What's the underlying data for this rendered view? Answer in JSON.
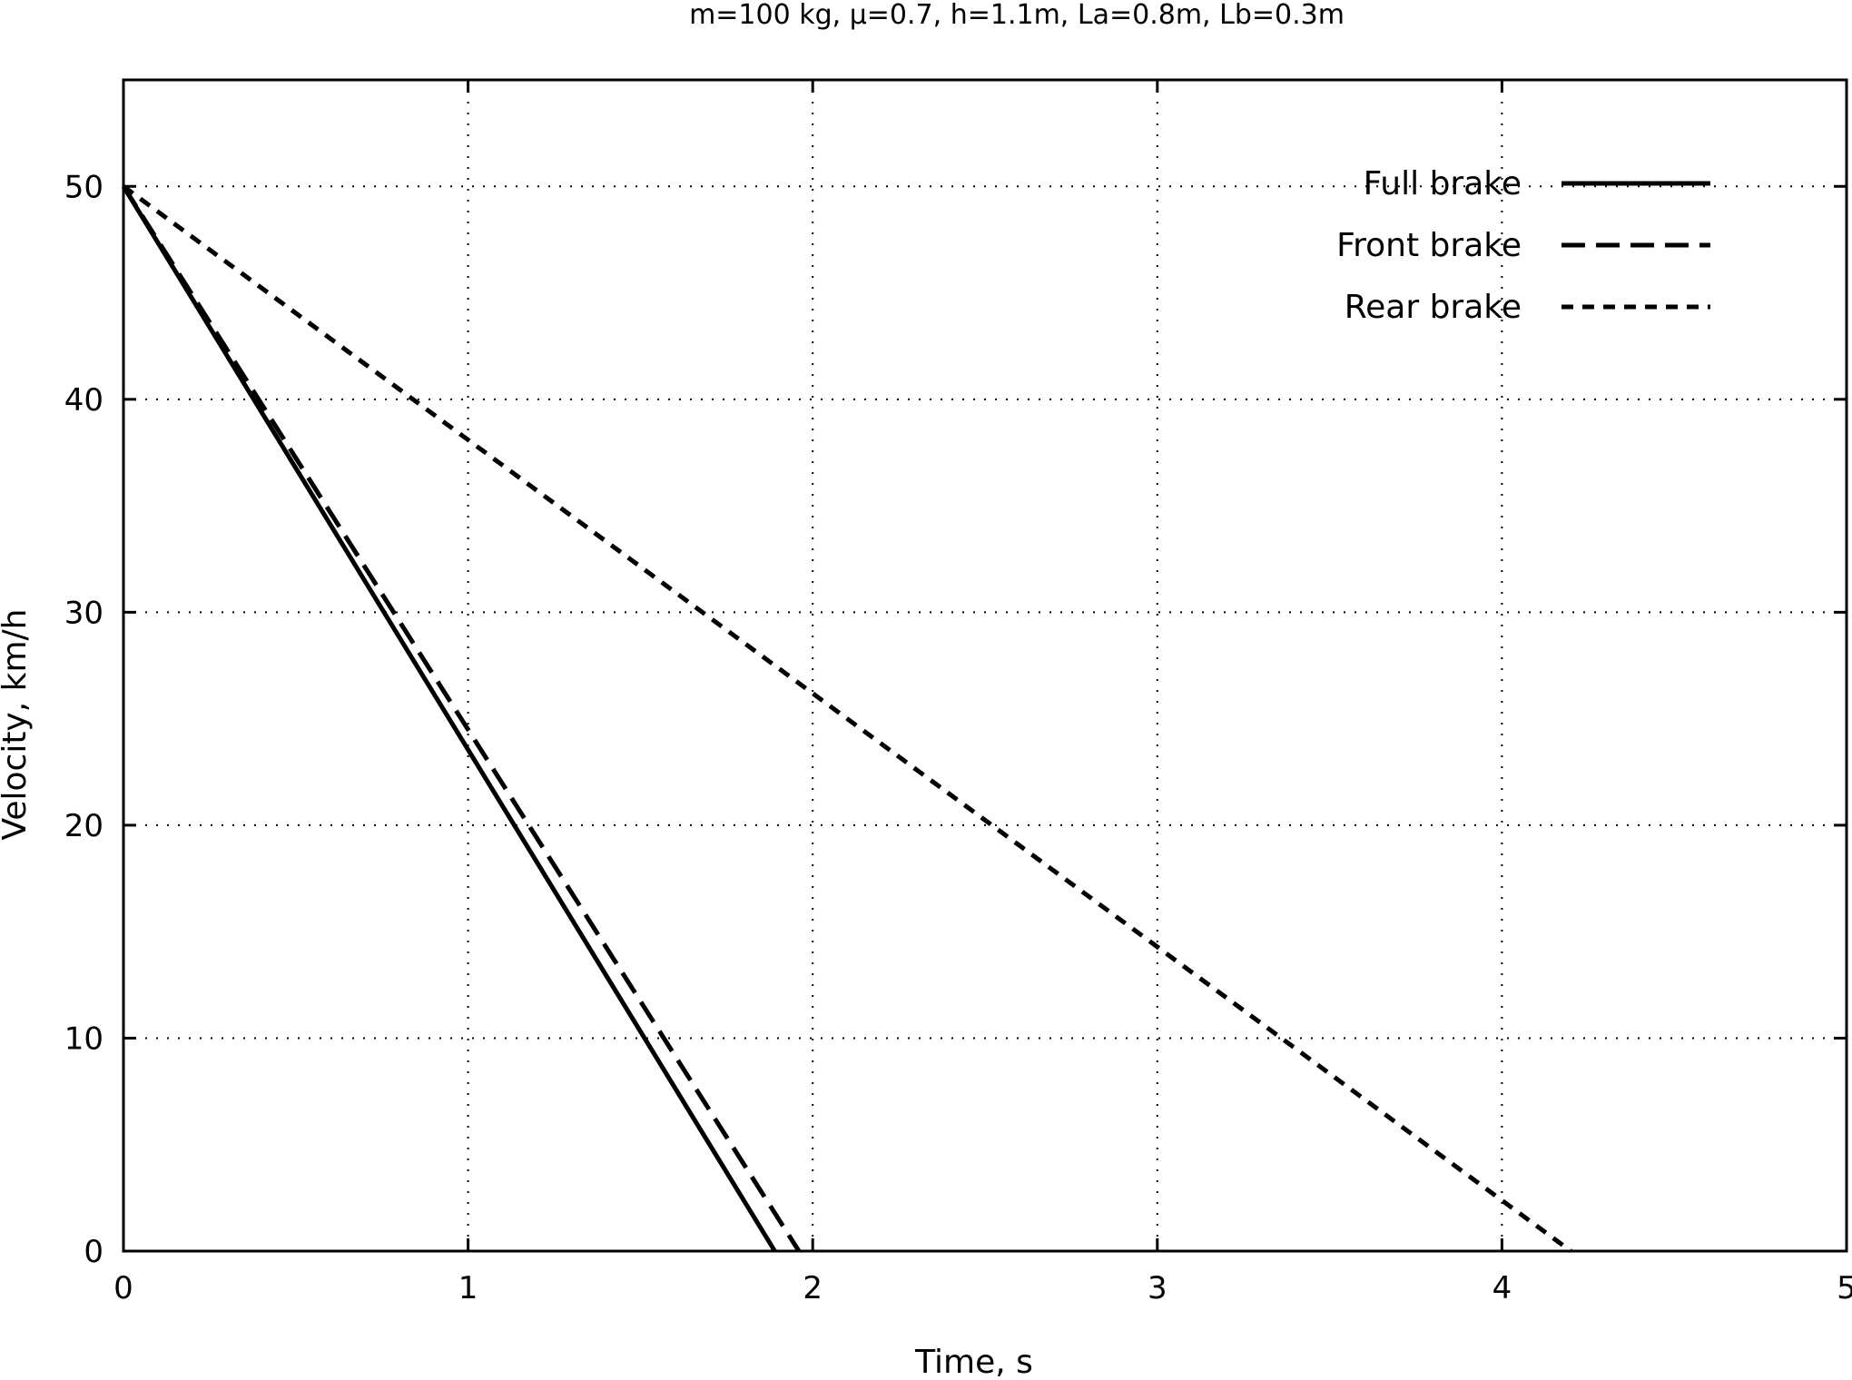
{
  "chart_data": {
    "type": "line",
    "title": "m=100 kg,  μ=0.7,  h=1.1m,  La=0.8m,  Lb=0.3m",
    "xlabel": "Time, s",
    "ylabel": "Velocity, km/h",
    "xlim": [
      0,
      5
    ],
    "ylim": [
      0,
      55
    ],
    "xticks": [
      0,
      1,
      2,
      3,
      4,
      5
    ],
    "yticks": [
      0,
      10,
      20,
      30,
      40,
      50
    ],
    "xtick_labels": [
      "0",
      "1",
      "2",
      "3",
      "4",
      "5"
    ],
    "ytick_labels": [
      "0",
      "10",
      "20",
      "30",
      "40",
      "50"
    ],
    "grid": true,
    "legend_position": "top-right",
    "series": [
      {
        "name": "Full brake",
        "style": "solid",
        "x": [
          0,
          1.89
        ],
        "y": [
          50,
          0
        ]
      },
      {
        "name": "Front brake",
        "style": "long-dash",
        "x": [
          0,
          1.96
        ],
        "y": [
          50,
          0
        ]
      },
      {
        "name": "Rear brake",
        "style": "short-dash",
        "x": [
          0,
          4.2
        ],
        "y": [
          50,
          0
        ]
      }
    ]
  }
}
